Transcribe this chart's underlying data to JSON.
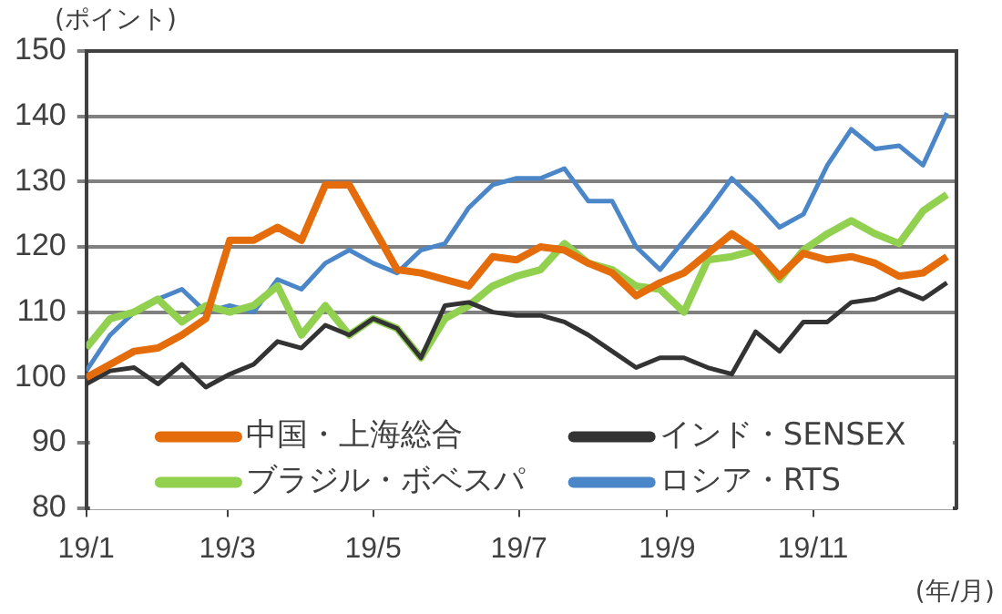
{
  "chart_data": {
    "type": "line",
    "ylabel": "(ポイント)",
    "xlabel": "(年/月)",
    "x": [
      "--01-01",
      "--01-11",
      "--01-21",
      "--01-31",
      "--02-10",
      "--02-20",
      "--03-02",
      "--03-12",
      "--03-22",
      "--04-01",
      "--04-11",
      "--04-21",
      "--05-01",
      "--05-11",
      "--05-21",
      "--05-31",
      "--06-10",
      "--06-20",
      "--06-30",
      "--07-10",
      "--07-20",
      "--07-30",
      "--08-09",
      "--08-19",
      "--08-29",
      "--09-08",
      "--09-18",
      "--09-28",
      "--10-08",
      "--10-18",
      "--10-28",
      "--11-07",
      "--11-17",
      "--11-27",
      "--12-07",
      "--12-17",
      "--12-27"
    ],
    "series": [
      {
        "name": "中国・上海総合",
        "color": "#e46c0a",
        "values": [
          100,
          102,
          104,
          104.5,
          106.5,
          109,
          121,
          121,
          123,
          121,
          129.5,
          129.5,
          123,
          116.5,
          116,
          115,
          114,
          118.5,
          118,
          120,
          119.5,
          117.5,
          116,
          112.5,
          114.5,
          116,
          119,
          122,
          119.5,
          115.5,
          119,
          118,
          118.5,
          117.5,
          115.5,
          116,
          118.5
        ]
      },
      {
        "name": "インド・SENSEX",
        "color": "#333333",
        "values": [
          99,
          101,
          101.5,
          99,
          102,
          98.5,
          100.5,
          102,
          105.5,
          104.5,
          108,
          106.5,
          109,
          107.5,
          103,
          111,
          111.5,
          110,
          109.5,
          109.5,
          108.5,
          106.5,
          104,
          101.5,
          103,
          103,
          101.5,
          100.5,
          107,
          104,
          108.5,
          108.5,
          111.5,
          112,
          113.5,
          112,
          114.5
        ]
      },
      {
        "name": "ブラジル・ボベスパ",
        "color": "#92d050",
        "values": [
          104.5,
          109,
          110,
          112,
          108.5,
          111,
          110,
          111,
          114,
          106.5,
          111,
          106.5,
          109,
          107.5,
          103,
          109,
          111,
          114,
          115.5,
          116.5,
          120.5,
          117.5,
          116.5,
          114,
          113.5,
          110,
          118,
          118.5,
          119.5,
          115,
          119.5,
          122,
          124,
          122,
          120.5,
          125.5,
          128
        ]
      },
      {
        "name": "ロシア・RTS",
        "color": "#4a86c8",
        "values": [
          101,
          106.5,
          110,
          112,
          113.5,
          110,
          111,
          110,
          115,
          113.5,
          117.5,
          119.5,
          117.5,
          116,
          119.5,
          120.5,
          126,
          129.5,
          130.5,
          130.5,
          132,
          127,
          127,
          120,
          116.5,
          121,
          125.5,
          130.5,
          127,
          123,
          125,
          132.5,
          138,
          135,
          135.5,
          132.5,
          140.5
        ]
      }
    ],
    "xlim": [
      "--01-01",
      "--12-31"
    ],
    "xticks": [
      {
        "value": "--01-01",
        "label": "19/1"
      },
      {
        "value": "--03-01",
        "label": "19/3"
      },
      {
        "value": "--05-01",
        "label": "19/5"
      },
      {
        "value": "--07-01",
        "label": "19/7"
      },
      {
        "value": "--09-01",
        "label": "19/9"
      },
      {
        "value": "--11-01",
        "label": "19/11"
      }
    ],
    "ylim": [
      80,
      150
    ],
    "yticks": [
      80,
      90,
      100,
      110,
      120,
      130,
      140,
      150
    ],
    "grid": "y",
    "legend": "bottom",
    "marker": "none",
    "line_style": "solid"
  }
}
